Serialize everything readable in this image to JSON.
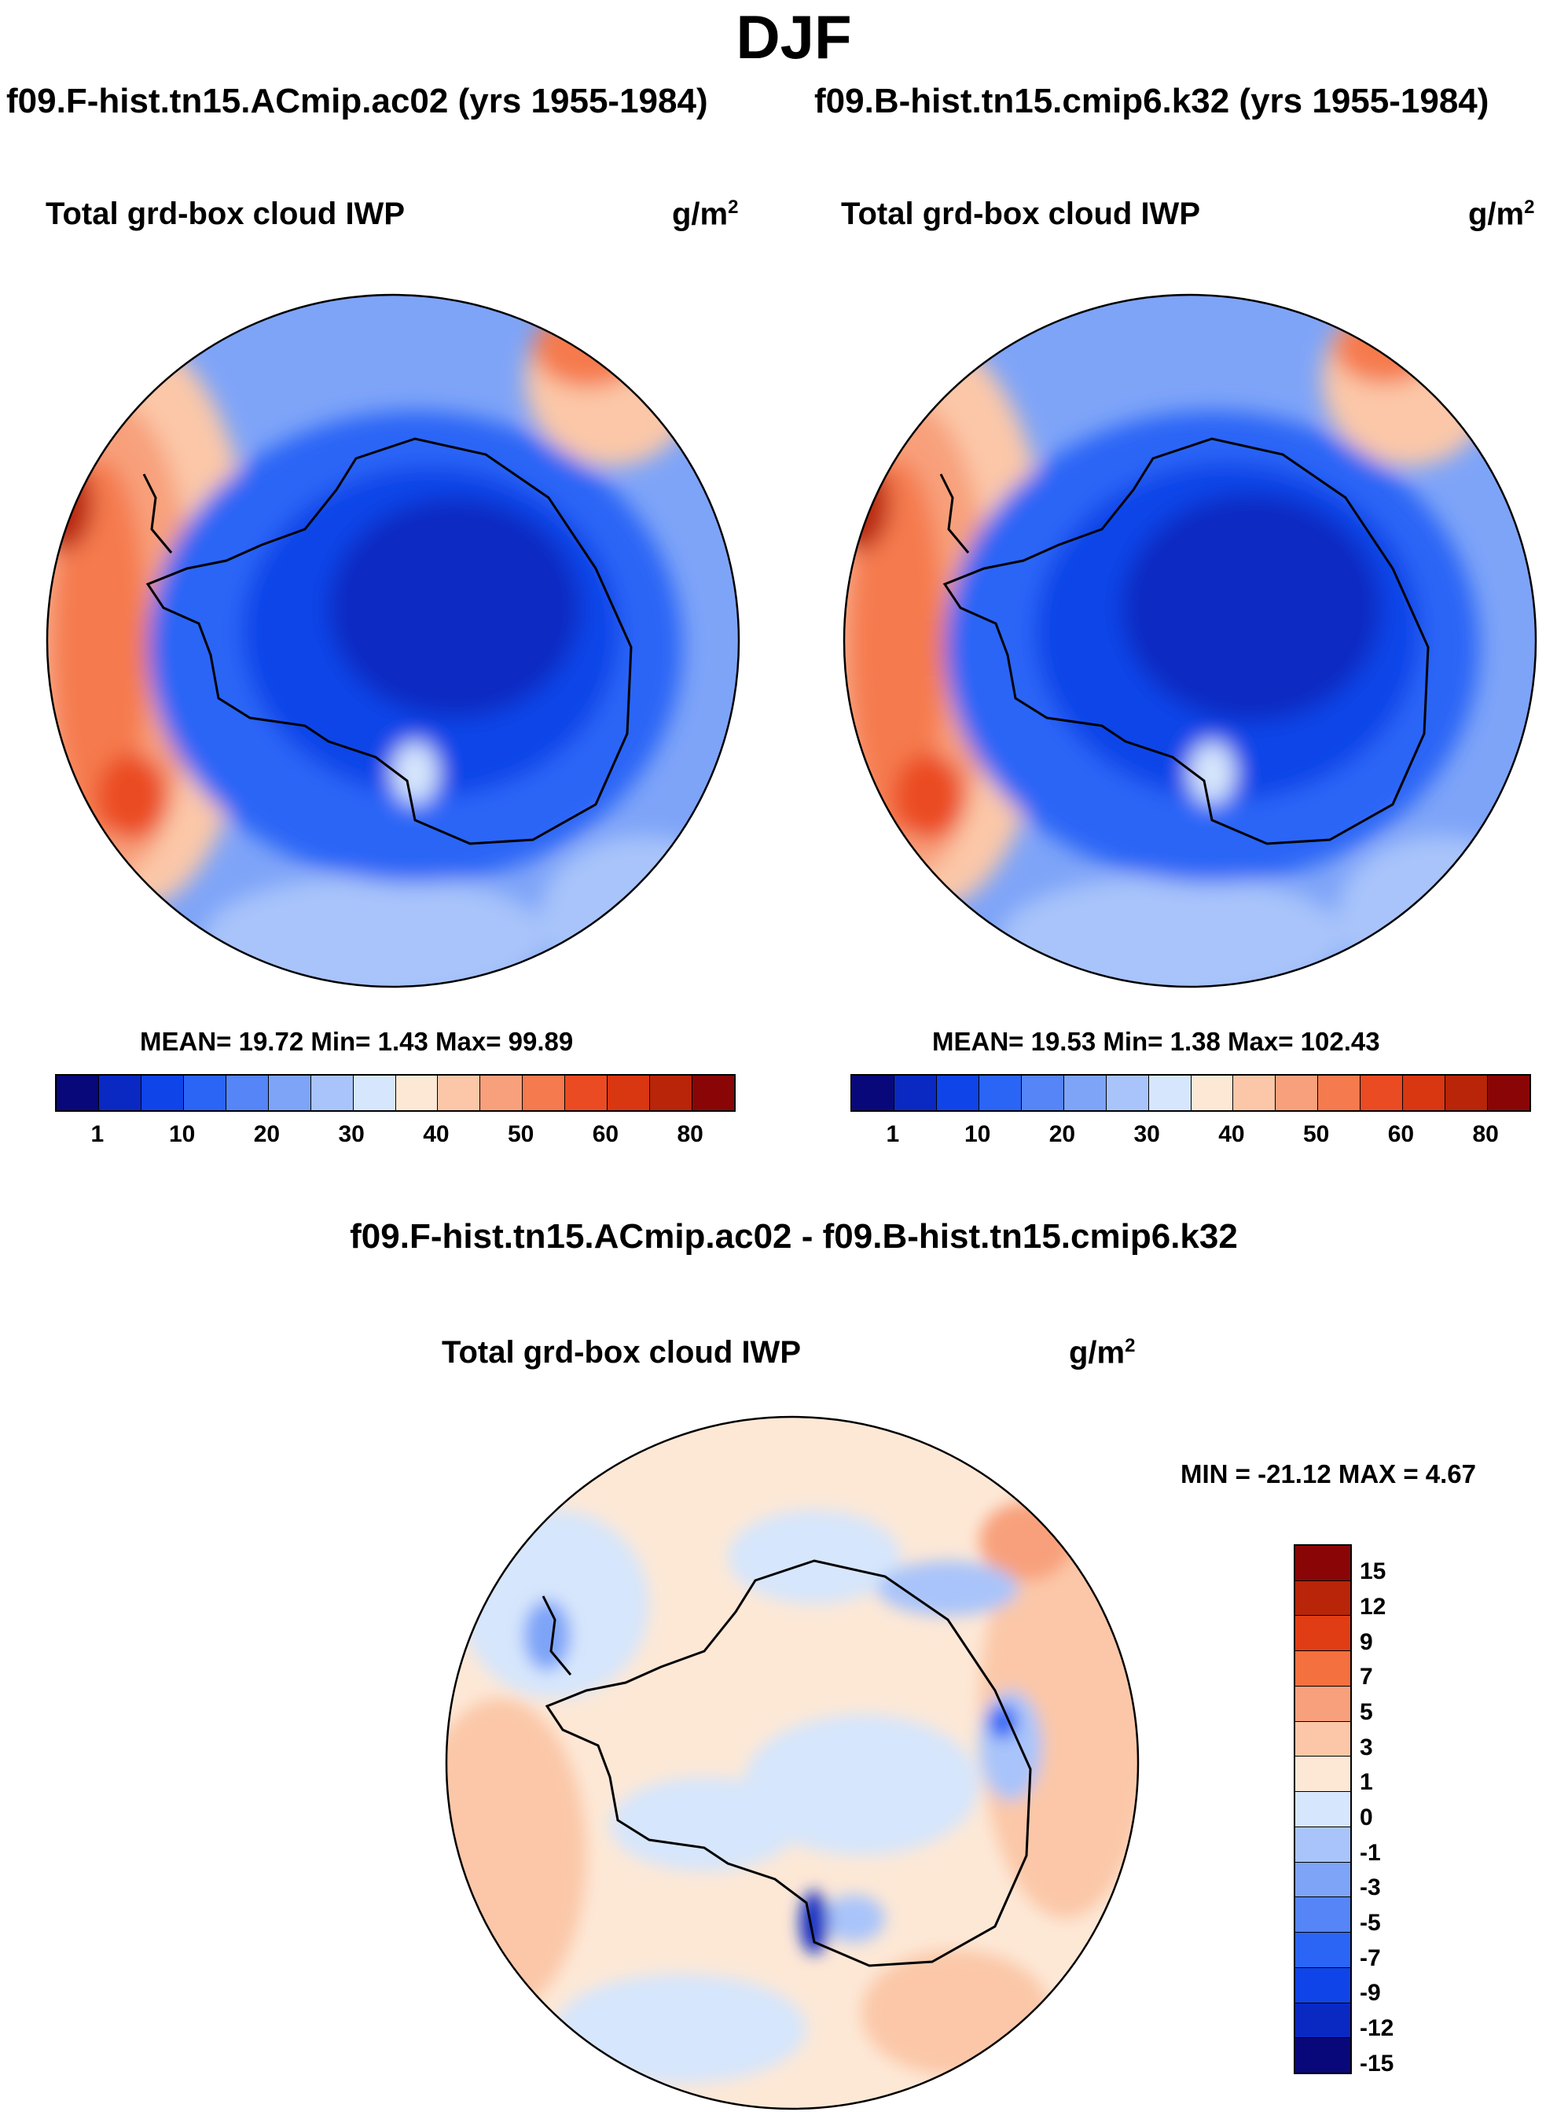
{
  "season": "DJF",
  "panels": [
    {
      "run": "f09.F-hist.tn15.ACmip.ac02 (yrs 1955-1984)",
      "variable": "Total grd-box cloud IWP",
      "unit_base": "g/m",
      "unit_exp": "2",
      "stats": "MEAN=  19.72  Min=    1.43   Max=  99.89"
    },
    {
      "run": "f09.B-hist.tn15.cmip6.k32 (yrs 1955-1984)",
      "variable": "Total grd-box cloud IWP",
      "unit_base": "g/m",
      "unit_exp": "2",
      "stats": "MEAN=  19.53  Min=    1.38   Max= 102.43"
    }
  ],
  "difference": {
    "title": "f09.F-hist.tn15.ACmip.ac02 - f09.B-hist.tn15.cmip6.k32",
    "variable": "Total grd-box cloud IWP",
    "unit_base": "g/m",
    "unit_exp": "2",
    "minmax": "MIN = -21.12 MAX =    4.67"
  },
  "colors": {
    "abs_scale": [
      "#08087a",
      "#0a29c2",
      "#0f44e8",
      "#2a65f6",
      "#5585f6",
      "#7ea4f8",
      "#a9c4fa",
      "#d6e6fc",
      "#fde8d6",
      "#fbc7a8",
      "#f8a07c",
      "#f57a4e",
      "#eb4b22",
      "#d93612",
      "#b82508",
      "#8a0606"
    ],
    "diff_scale": [
      "#8a0606",
      "#b82508",
      "#e03d15",
      "#f5703f",
      "#f8a07c",
      "#fbc7a8",
      "#fde8d6",
      "#d6e6fc",
      "#a9c4fa",
      "#7ea4f8",
      "#5585f6",
      "#2a65f6",
      "#0f44e8",
      "#0a29c2",
      "#08087a"
    ]
  },
  "chart_data": [
    {
      "type": "heatmap",
      "projection": "south polar stereographic",
      "title": "Total grd-box cloud IWP",
      "subtitle": "f09.F-hist.tn15.ACmip.ac02 (yrs 1955-1984)",
      "units": "g/m2",
      "mean": 19.72,
      "min": 1.43,
      "max": 99.89,
      "colorbar_levels": [
        1,
        5,
        10,
        15,
        20,
        25,
        30,
        35,
        40,
        45,
        50,
        55,
        60,
        70,
        80
      ],
      "colorbar_labels": [
        "1",
        "10",
        "20",
        "30",
        "40",
        "50",
        "60",
        "80"
      ]
    },
    {
      "type": "heatmap",
      "projection": "south polar stereographic",
      "title": "Total grd-box cloud IWP",
      "subtitle": "f09.B-hist.tn15.cmip6.k32 (yrs 1955-1984)",
      "units": "g/m2",
      "mean": 19.53,
      "min": 1.38,
      "max": 102.43,
      "colorbar_levels": [
        1,
        5,
        10,
        15,
        20,
        25,
        30,
        35,
        40,
        45,
        50,
        55,
        60,
        70,
        80
      ],
      "colorbar_labels": [
        "1",
        "10",
        "20",
        "30",
        "40",
        "50",
        "60",
        "80"
      ]
    },
    {
      "type": "heatmap",
      "projection": "south polar stereographic",
      "title": "Total grd-box cloud IWP",
      "subtitle": "f09.F-hist.tn15.ACmip.ac02 - f09.B-hist.tn15.cmip6.k32",
      "units": "g/m2",
      "min": -21.12,
      "max": 4.67,
      "colorbar_levels": [
        15,
        12,
        9,
        7,
        5,
        3,
        1,
        0,
        -1,
        -3,
        -5,
        -7,
        -9,
        -12,
        -15
      ],
      "colorbar_labels": [
        "15",
        "12",
        "9",
        "7",
        "5",
        "3",
        "1",
        "0",
        "-1",
        "-3",
        "-5",
        "-7",
        "-9",
        "-12",
        "-15"
      ]
    }
  ]
}
